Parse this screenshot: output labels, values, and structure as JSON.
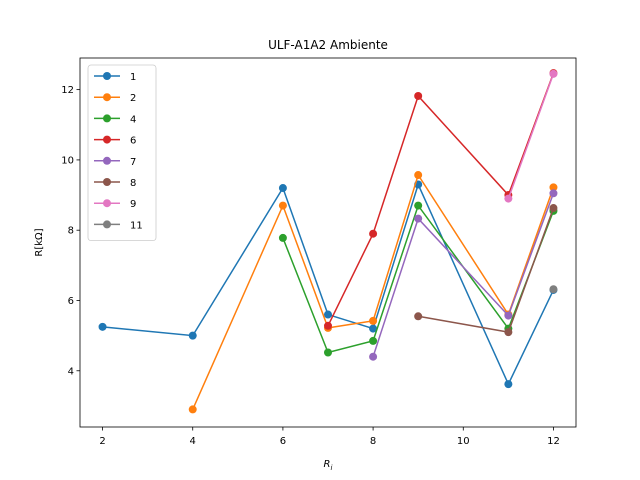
{
  "chart_data": {
    "type": "line",
    "title": "ULF-A1A2 Ambiente",
    "xlabel": "R",
    "xlabel_subscript": "i",
    "ylabel": "R[kΩ]",
    "xlim": [
      1.5,
      12.5
    ],
    "ylim": [
      2.4,
      12.9
    ],
    "xticks": [
      2,
      4,
      6,
      8,
      10,
      12
    ],
    "yticks": [
      4,
      6,
      8,
      10,
      12
    ],
    "grid": false,
    "legend_position": "upper-left",
    "series": [
      {
        "name": "1",
        "color": "#1f77b4",
        "x": [
          2,
          4,
          6,
          7,
          8,
          9,
          11,
          12
        ],
        "y": [
          5.25,
          5.0,
          9.2,
          5.6,
          5.2,
          9.3,
          3.62,
          6.3
        ]
      },
      {
        "name": "2",
        "color": "#ff7f0e",
        "x": [
          4,
          6,
          7,
          8,
          9,
          11,
          12
        ],
        "y": [
          2.9,
          8.7,
          5.22,
          5.42,
          9.57,
          5.6,
          9.22
        ]
      },
      {
        "name": "4",
        "color": "#2ca02c",
        "x": [
          6,
          7,
          8,
          9,
          11,
          12
        ],
        "y": [
          7.78,
          4.52,
          4.85,
          8.7,
          5.2,
          8.55
        ]
      },
      {
        "name": "6",
        "color": "#d62728",
        "x": [
          7,
          8,
          9,
          11,
          12
        ],
        "y": [
          5.28,
          7.9,
          11.82,
          9.0,
          12.47
        ]
      },
      {
        "name": "7",
        "color": "#9467bd",
        "x": [
          8,
          9,
          11,
          12
        ],
        "y": [
          4.4,
          8.33,
          5.57,
          9.05
        ]
      },
      {
        "name": "8",
        "color": "#8c564b",
        "x": [
          9,
          11,
          12
        ],
        "y": [
          5.55,
          5.1,
          8.63
        ]
      },
      {
        "name": "9",
        "color": "#e377c2",
        "x": [
          11,
          12
        ],
        "y": [
          8.9,
          12.45
        ]
      },
      {
        "name": "11",
        "color": "#7f7f7f",
        "x": [
          12
        ],
        "y": [
          6.32
        ]
      }
    ]
  }
}
